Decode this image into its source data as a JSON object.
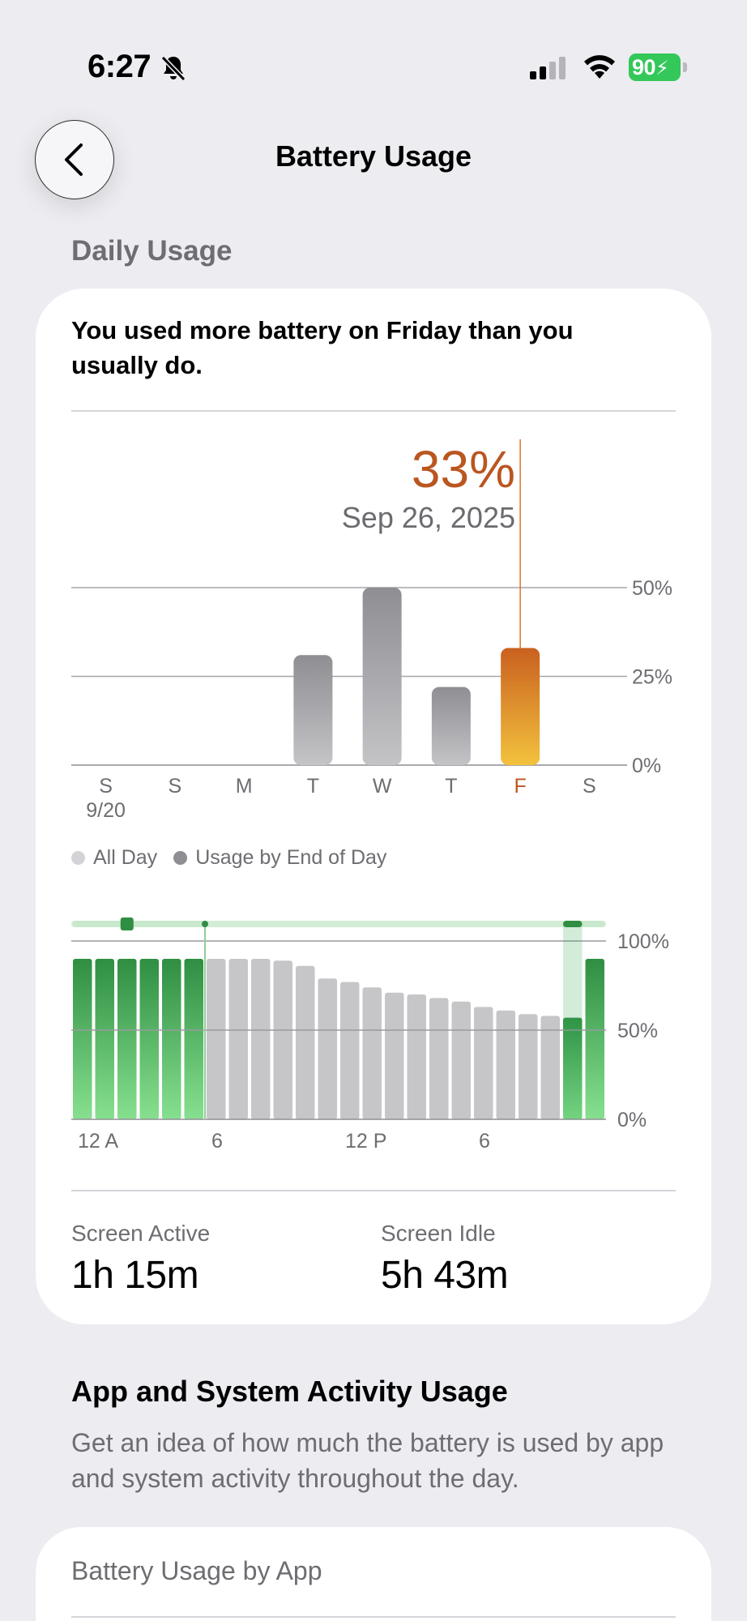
{
  "status_bar": {
    "time": "6:27",
    "battery_level": "90",
    "icons": [
      "bell-slash-icon",
      "cellular-signal-icon",
      "wifi-icon",
      "battery-charging-icon"
    ],
    "battery_color": "#34C759"
  },
  "nav": {
    "title": "Battery Usage",
    "back_icon": "chevron-left-icon"
  },
  "daily_usage": {
    "section_label": "Daily Usage",
    "insight": "You used more battery on Friday than you usually do.",
    "selected": {
      "value": "33%",
      "date": "Sep 26, 2025"
    },
    "accent_color": "#BA5620"
  },
  "chart_data": [
    {
      "type": "bar",
      "categories": [
        "S",
        "S",
        "M",
        "T",
        "W",
        "T",
        "F",
        "S"
      ],
      "category_sublabels": [
        "9/20",
        "",
        "",
        "",
        "",
        "",
        "",
        ""
      ],
      "values": [
        0,
        0,
        0,
        31,
        50,
        22,
        33,
        0
      ],
      "selected_index": 6,
      "y_ticks": [
        "50%",
        "25%",
        "0%"
      ],
      "ylim": [
        0,
        50
      ],
      "grid": true,
      "colors": {
        "default": "#9a9aa0",
        "selected": "#D9762A"
      }
    },
    {
      "type": "bar",
      "legend": [
        "All Day",
        "Usage by End of Day"
      ],
      "x_ticks": [
        "12 A",
        "6",
        "12 P",
        "6"
      ],
      "y_ticks": [
        "100%",
        "50%",
        "0%"
      ],
      "ylim": [
        0,
        100
      ],
      "grid": true,
      "values": [
        90,
        90,
        90,
        90,
        90,
        90,
        90,
        90,
        90,
        89,
        86,
        79,
        77,
        74,
        71,
        70,
        68,
        66,
        63,
        61,
        59,
        58,
        57,
        90
      ],
      "charging": [
        true,
        true,
        true,
        true,
        true,
        true,
        false,
        false,
        false,
        false,
        false,
        false,
        false,
        false,
        false,
        false,
        false,
        false,
        false,
        false,
        false,
        false,
        true,
        true
      ],
      "colors": {
        "charging": "#3FAE52",
        "discharging": "#c6c6c8"
      }
    }
  ],
  "legend": {
    "all_day": "All Day",
    "end_of_day": "Usage by End of Day"
  },
  "stats": {
    "screen_active_label": "Screen Active",
    "screen_active_value": "1h 15m",
    "screen_idle_label": "Screen Idle",
    "screen_idle_value": "5h 43m"
  },
  "activity": {
    "heading": "App and System Activity Usage",
    "description": "Get an idea of how much the battery is used by app and system activity throughout the day.",
    "card_title": "Battery Usage by App"
  }
}
